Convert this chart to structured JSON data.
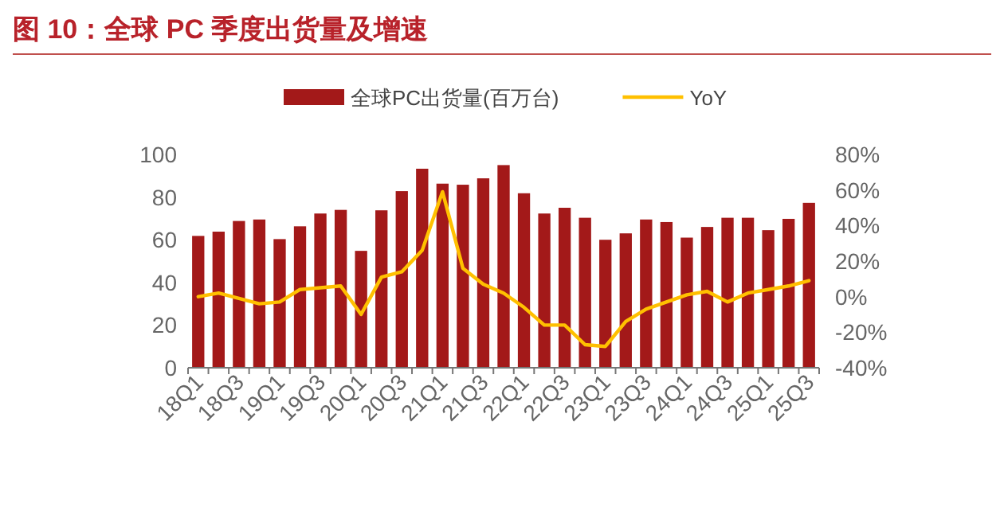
{
  "chart_data": {
    "type": "bar",
    "title": "图 10：全球 PC 季度出货量及增速",
    "categories": [
      "18Q1",
      null,
      "18Q3",
      null,
      "19Q1",
      null,
      "19Q3",
      null,
      "20Q1",
      null,
      "20Q3",
      null,
      "21Q1",
      null,
      "21Q3",
      null,
      "22Q1",
      null,
      "22Q3",
      null,
      "23Q1",
      null,
      "23Q3",
      null,
      "24Q1",
      null,
      "24Q3",
      null,
      "25Q1",
      null,
      "25Q3"
    ],
    "series": [
      {
        "name": "全球PC出货量(百万台)",
        "color": "#a31919",
        "values": [
          61.8,
          63.8,
          68.8,
          69.5,
          60.3,
          66.3,
          72.3,
          74,
          54.8,
          73.8,
          82.8,
          93.3,
          86.3,
          85.8,
          88.8,
          95,
          81.8,
          72.3,
          75,
          70.3,
          60,
          63,
          69.5,
          68.3,
          61,
          66,
          70.3,
          70.3,
          64.5,
          69.8,
          77.3
        ]
      },
      {
        "name": "YoY",
        "type": "line",
        "axis": "y2",
        "color": "#ffc000",
        "values": [
          0,
          2,
          -1,
          -4,
          -3,
          4,
          5,
          6,
          -10,
          11,
          14,
          26,
          59,
          16,
          7,
          2,
          -6,
          -16,
          -16,
          -27,
          -28,
          -14,
          -7,
          -3,
          1,
          3,
          -3,
          2,
          4,
          6,
          9
        ]
      }
    ],
    "ylim": [
      0,
      100
    ],
    "yticks": [
      0,
      20,
      40,
      60,
      80,
      100
    ],
    "y2lim": [
      -40,
      80
    ],
    "y2ticks": [
      {
        "value": -40,
        "label": "-40%"
      },
      {
        "value": -20,
        "label": "-20%"
      },
      {
        "value": 0,
        "label": "0%"
      },
      {
        "value": 20,
        "label": "20%"
      },
      {
        "value": 40,
        "label": "40%"
      },
      {
        "value": 60,
        "label": "60%"
      },
      {
        "value": 80,
        "label": "80%"
      }
    ],
    "legend": "top"
  }
}
